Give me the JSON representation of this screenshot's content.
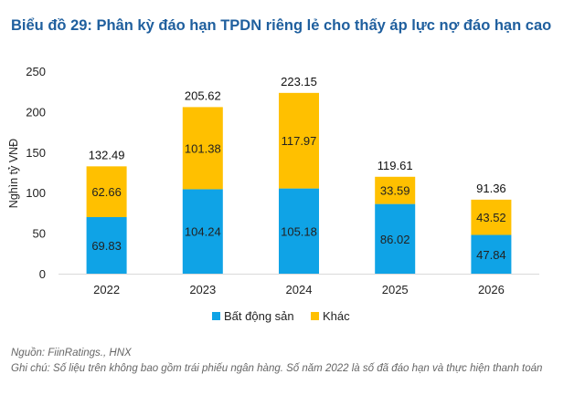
{
  "title": "Biểu đồ 29: Phân kỳ đáo hạn TPDN riêng lẻ cho thấy áp lực nợ đáo hạn cao",
  "source": "Nguồn: FiinRatings., HNX",
  "note": "Ghi chú: Số liệu trên không bao gồm trái phiếu ngân hàng. Số năm 2022 là số đã đáo hạn và thực hiện thanh toán",
  "chart_data": {
    "type": "bar",
    "stacked": true,
    "categories": [
      "2022",
      "2023",
      "2024",
      "2025",
      "2026"
    ],
    "series": [
      {
        "name": "Bất động sản",
        "color": "#0fa3e6",
        "values": [
          69.83,
          104.24,
          105.18,
          86.02,
          47.84
        ]
      },
      {
        "name": "Khác",
        "color": "#ffc000",
        "values": [
          62.66,
          101.38,
          117.97,
          33.59,
          43.52
        ]
      }
    ],
    "totals": [
      132.49,
      205.62,
      223.15,
      119.61,
      91.36
    ],
    "ylabel": "Nghìn tỷ VNĐ",
    "xlabel": "",
    "ylim": [
      0,
      250
    ],
    "yticks": [
      0,
      50,
      100,
      150,
      200,
      250
    ],
    "grid": false,
    "legend": "bottom"
  }
}
